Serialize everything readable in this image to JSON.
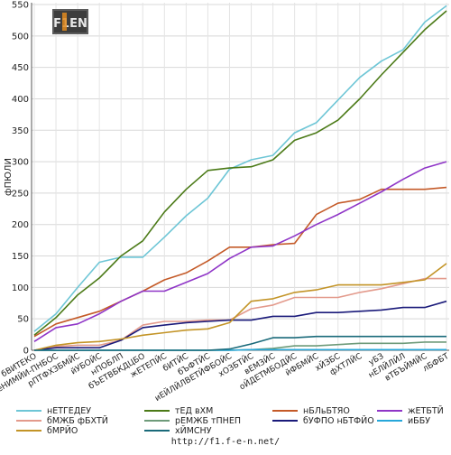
{
  "footer": {
    "url": "http://f1.f-e-n.net/"
  },
  "logo": {
    "text": "F1EN"
  },
  "chart_data": {
    "type": "line",
    "title": "",
    "xlabel": "",
    "ylabel": "фПЮЛИ",
    "ylim": [
      0,
      550
    ],
    "yticks": [
      0,
      50,
      100,
      150,
      200,
      250,
      300,
      350,
      400,
      450,
      500,
      550
    ],
    "grid": true,
    "legend_position": "bottom",
    "categories": [
      "бВИТЕКО",
      "еНИМЙИ-ПНБОС",
      "рПТФХЗБМЙС",
      "йУБОЙС",
      "нПОБЛП",
      "бЪЕТВБКДЦБО",
      "жЕТЕПЙС",
      "бИТЙС",
      "бЪФТЙС",
      "иЕЙЛЙЛВЕТЙФБОЙС",
      "хОЗБТЙС",
      "вЕМЗЙС",
      "оЙДЕТМБОДЙС",
      "йФБМЙС",
      "хЙЗБС",
      "фХТЛЙС",
      "уБЗ",
      "нЕЛЙЛЙЛ",
      "вТБЪЙМЙС",
      "лБФБТ"
    ],
    "series": [
      {
        "name": "нЕТГЕДЕУ",
        "color": "#6ec6d6",
        "values": [
          30,
          58,
          100,
          140,
          148,
          148,
          180,
          214,
          242,
          288,
          303,
          310,
          346,
          362,
          398,
          434,
          460,
          478,
          522,
          548
        ]
      },
      {
        "name": "тЕД вХМ",
        "color": "#4b7a17",
        "values": [
          24,
          52,
          88,
          115,
          150,
          174,
          220,
          256,
          286,
          290,
          292,
          303,
          334,
          346,
          366,
          400,
          438,
          474,
          510,
          540
        ]
      },
      {
        "name": "нБЛьБТЯО",
        "color": "#c45a28",
        "values": [
          22,
          42,
          52,
          62,
          78,
          94,
          112,
          123,
          142,
          164,
          164,
          168,
          170,
          216,
          234,
          240,
          256,
          256,
          256,
          259
        ]
      },
      {
        "name": "жЕТБТЙ",
        "color": "#8f35c7",
        "values": [
          14,
          36,
          42,
          58,
          78,
          94,
          94,
          108,
          122,
          146,
          164,
          166,
          182,
          200,
          216,
          234,
          252,
          272,
          290,
          300
        ]
      },
      {
        "name": "бМЖБ фБХТЙ",
        "color": "#e39a8c",
        "values": [
          0,
          6,
          8,
          8,
          16,
          40,
          46,
          46,
          48,
          48,
          66,
          72,
          84,
          84,
          84,
          92,
          98,
          106,
          114,
          114
        ]
      },
      {
        "name": "рЕМЖБ тПНЕП",
        "color": "#6e9b7a",
        "values": [
          0,
          0,
          0,
          0,
          0,
          0,
          0,
          0,
          0,
          0,
          1,
          3,
          7,
          7,
          9,
          11,
          11,
          11,
          13,
          13
        ]
      },
      {
        "name": "бУФПО нБТФЙО",
        "color": "#1a1a7a",
        "values": [
          0,
          4,
          4,
          4,
          16,
          36,
          40,
          44,
          46,
          48,
          48,
          54,
          54,
          60,
          60,
          62,
          64,
          68,
          68,
          78
        ]
      },
      {
        "name": "иББУ",
        "color": "#27a7da",
        "values": [
          0,
          0,
          0,
          0,
          0,
          0,
          0,
          0,
          0,
          0,
          1,
          1,
          1,
          1,
          1,
          1,
          1,
          1,
          1,
          1
        ]
      },
      {
        "name": "бМРЙО",
        "color": "#c39427",
        "values": [
          0,
          8,
          12,
          14,
          18,
          24,
          28,
          32,
          34,
          44,
          78,
          82,
          92,
          96,
          104,
          104,
          104,
          108,
          112,
          138
        ]
      },
      {
        "name": "хЙМСНУ",
        "color": "#1a6a7a",
        "values": [
          0,
          0,
          0,
          0,
          0,
          0,
          0,
          0,
          0,
          2,
          10,
          20,
          20,
          22,
          22,
          22,
          22,
          22,
          22,
          22
        ]
      }
    ]
  }
}
